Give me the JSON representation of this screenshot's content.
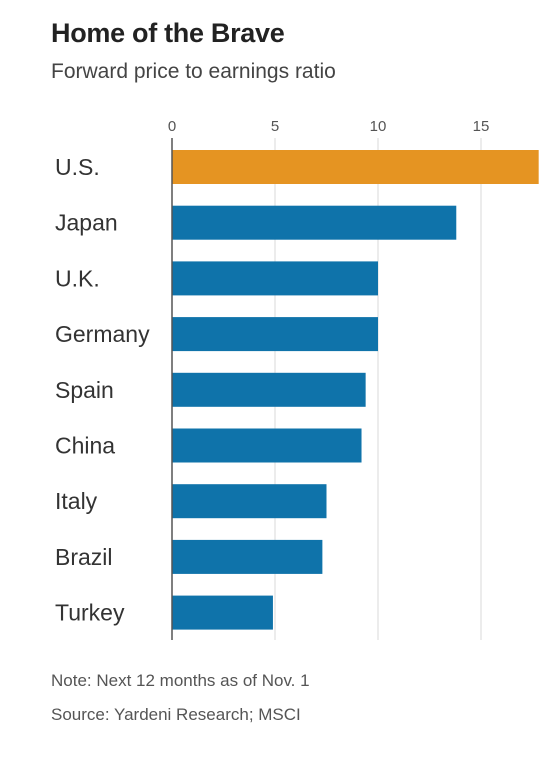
{
  "header": {
    "title": "Home of the Brave",
    "subtitle": "Forward price to earnings ratio"
  },
  "footer": {
    "note": "Note: Next 12 months as of Nov. 1",
    "source": "Source: Yardeni Research; MSCI"
  },
  "colors": {
    "highlight": "#e59422",
    "bar": "#0f73aa",
    "grid": "#d9d9d9",
    "axis": "#555555"
  },
  "chart_data": {
    "type": "bar",
    "orientation": "horizontal",
    "title": "Home of the Brave",
    "subtitle": "Forward price to earnings ratio",
    "xlabel": "",
    "ylabel": "",
    "categories": [
      "U.S.",
      "Japan",
      "U.K.",
      "Germany",
      "Spain",
      "China",
      "Italy",
      "Brazil",
      "Turkey"
    ],
    "values": [
      17.8,
      13.8,
      10.0,
      10.0,
      9.4,
      9.2,
      7.5,
      7.3,
      4.9
    ],
    "highlighted_category": "U.S.",
    "xlim": [
      0,
      18
    ],
    "xticks": [
      "0",
      "5",
      "10",
      "15"
    ],
    "tick_values": [
      0,
      5,
      10,
      15
    ],
    "axis_position": "top",
    "grid": true,
    "legend": "none"
  }
}
